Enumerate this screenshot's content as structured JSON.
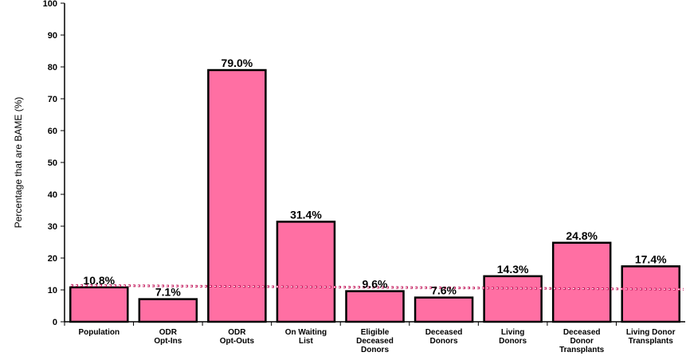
{
  "chart_data": {
    "type": "bar",
    "title": "",
    "xlabel": "",
    "ylabel": "Percentage that are BAME (%)",
    "ylim": [
      0,
      100
    ],
    "yticks": [
      0,
      10,
      20,
      30,
      40,
      50,
      60,
      70,
      80,
      90,
      100
    ],
    "categories": [
      [
        "Population"
      ],
      [
        "ODR",
        "Opt-Ins"
      ],
      [
        "ODR",
        "Opt-Outs"
      ],
      [
        "On Waiting",
        "List"
      ],
      [
        "Eligible",
        "Deceased",
        "Donors"
      ],
      [
        "Deceased",
        "Donors"
      ],
      [
        "Living",
        "Donors"
      ],
      [
        "Deceased",
        "Donor",
        "Transplants"
      ],
      [
        "Living Donor",
        "Transplants"
      ]
    ],
    "values": [
      10.8,
      7.1,
      79.0,
      31.4,
      9.6,
      7.6,
      14.3,
      24.8,
      17.4
    ],
    "data_labels": [
      "10.8%",
      "7.1%",
      "79.0%",
      "31.4%",
      "9.6%",
      "7.6%",
      "14.3%",
      "24.8%",
      "17.4%"
    ],
    "reference_line": {
      "value": 10.8,
      "style": "dotted",
      "color": "#c2185b"
    },
    "bar_fill": "#ff6fa3",
    "bar_stroke": "#000000",
    "grid": false,
    "legend": "none"
  }
}
